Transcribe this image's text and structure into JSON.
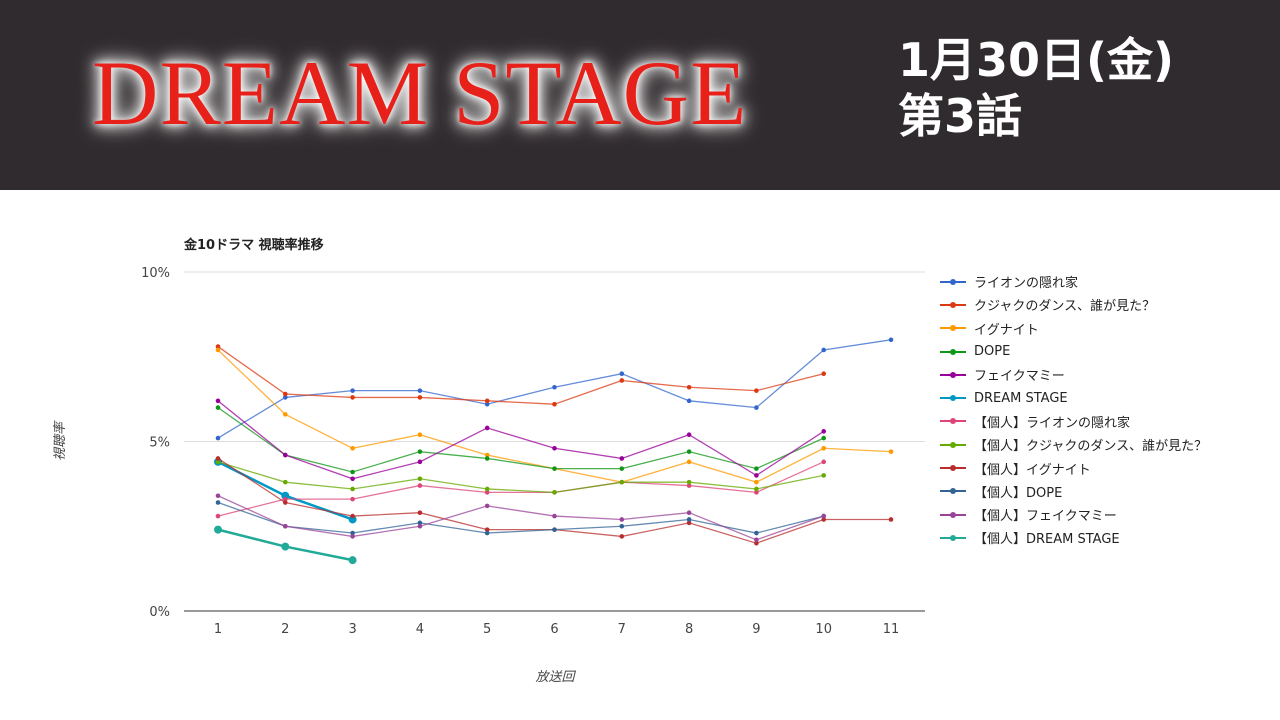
{
  "header": {
    "title": "DREAM STAGE",
    "date": "1月30日(金)",
    "episode": "第3話",
    "title_color": "#e8201a",
    "bg_color": "#302b2e"
  },
  "chart_data": {
    "type": "line",
    "title": "金10ドラマ 視聴率推移",
    "xlabel": "放送回",
    "ylabel": "視聴率",
    "x": [
      1,
      2,
      3,
      4,
      5,
      6,
      7,
      8,
      9,
      10,
      11
    ],
    "ylim": [
      0,
      10
    ],
    "yticks": [
      "0%",
      "5%",
      "10%"
    ],
    "grid": true,
    "legend": "right",
    "series": [
      {
        "name": "ライオンの隠れ家",
        "color": "#3366cc",
        "values": [
          5.1,
          6.3,
          6.5,
          6.5,
          6.1,
          6.6,
          7.0,
          6.2,
          6.0,
          7.7,
          8.0
        ]
      },
      {
        "name": "クジャクのダンス、誰が見た？",
        "color": "#dc3912",
        "values": [
          7.8,
          6.4,
          6.3,
          6.3,
          6.2,
          6.1,
          6.8,
          6.6,
          6.5,
          7.0,
          null
        ]
      },
      {
        "name": "イグナイト",
        "color": "#ff9900",
        "values": [
          7.7,
          5.8,
          4.8,
          5.2,
          4.6,
          4.2,
          3.8,
          4.4,
          3.8,
          4.8,
          4.7
        ]
      },
      {
        "name": "DOPE",
        "color": "#109618",
        "values": [
          6.0,
          4.6,
          4.1,
          4.7,
          4.5,
          4.2,
          4.2,
          4.7,
          4.2,
          5.1,
          null
        ]
      },
      {
        "name": "フェイクマミー",
        "color": "#990099",
        "values": [
          6.2,
          4.6,
          3.9,
          4.4,
          5.4,
          4.8,
          4.5,
          5.2,
          4.0,
          5.3,
          null
        ]
      },
      {
        "name": "DREAM STAGE",
        "color": "#0099c6",
        "highlight": true,
        "values": [
          4.4,
          3.4,
          2.7,
          null,
          null,
          null,
          null,
          null,
          null,
          null,
          null
        ]
      },
      {
        "name": "【個人】ライオンの隠れ家",
        "color": "#dd4477",
        "values": [
          2.8,
          3.3,
          3.3,
          3.7,
          3.5,
          3.5,
          3.8,
          3.7,
          3.5,
          4.4,
          null
        ]
      },
      {
        "name": "【個人】クジャクのダンス、誰が見た？",
        "color": "#66aa00",
        "values": [
          4.4,
          3.8,
          3.6,
          3.9,
          3.6,
          3.5,
          3.8,
          3.8,
          3.6,
          4.0,
          null
        ]
      },
      {
        "name": "【個人】イグナイト",
        "color": "#b82e2e",
        "values": [
          4.5,
          3.2,
          2.8,
          2.9,
          2.4,
          2.4,
          2.2,
          2.6,
          2.0,
          2.7,
          2.7
        ]
      },
      {
        "name": "【個人】DOPE",
        "color": "#316395",
        "values": [
          3.2,
          2.5,
          2.3,
          2.6,
          2.3,
          2.4,
          2.5,
          2.7,
          2.3,
          2.8,
          null
        ]
      },
      {
        "name": "【個人】フェイクマミー",
        "color": "#994499",
        "values": [
          3.4,
          2.5,
          2.2,
          2.5,
          3.1,
          2.8,
          2.7,
          2.9,
          2.1,
          2.8,
          null
        ]
      },
      {
        "name": "【個人】DREAM STAGE",
        "color": "#22aa99",
        "highlight": true,
        "values": [
          2.4,
          1.9,
          1.5,
          null,
          null,
          null,
          null,
          null,
          null,
          null,
          null
        ]
      }
    ]
  }
}
